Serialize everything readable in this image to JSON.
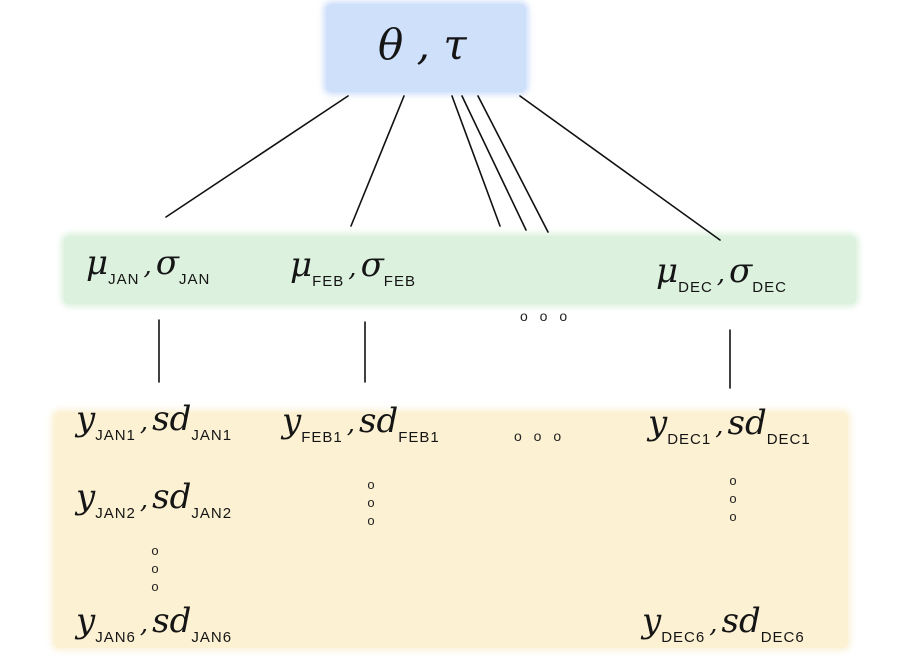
{
  "top": {
    "label": "θ , τ"
  },
  "months": {
    "jan": {
      "mu": "μ",
      "mu_sub": "JAN",
      "sep": ",",
      "sigma": "σ",
      "sigma_sub": "JAN"
    },
    "feb": {
      "mu": "μ",
      "mu_sub": "FEB",
      "sep": ",",
      "sigma": "σ",
      "sigma_sub": "FEB"
    },
    "dec": {
      "mu": "μ",
      "mu_sub": "DEC",
      "sep": ",",
      "sigma": "σ",
      "sigma_sub": "DEC"
    }
  },
  "observations": {
    "jan1": {
      "y": "y",
      "y_sub": "JAN1",
      "sep": ",",
      "sd": "sd",
      "sd_sub": "JAN1"
    },
    "jan2": {
      "y": "y",
      "y_sub": "JAN2",
      "sep": ",",
      "sd": "sd",
      "sd_sub": "JAN2"
    },
    "jan6": {
      "y": "y",
      "y_sub": "JAN6",
      "sep": ",",
      "sd": "sd",
      "sd_sub": "JAN6"
    },
    "feb1": {
      "y": "y",
      "y_sub": "FEB1",
      "sep": ",",
      "sd": "sd",
      "sd_sub": "FEB1"
    },
    "dec1": {
      "y": "y",
      "y_sub": "DEC1",
      "sep": ",",
      "sd": "sd",
      "sd_sub": "DEC1"
    },
    "dec6": {
      "y": "y",
      "y_sub": "DEC6",
      "sep": ",",
      "sd": "sd",
      "sd_sub": "DEC6"
    }
  },
  "ellipsis": {
    "h": "o o o",
    "v": [
      "o",
      "o",
      "o"
    ]
  },
  "colors": {
    "top_band": "#cfe0fb",
    "middle_band": "#dcf1de",
    "bottom_band": "#fcf1d2",
    "lines": "#111111"
  }
}
